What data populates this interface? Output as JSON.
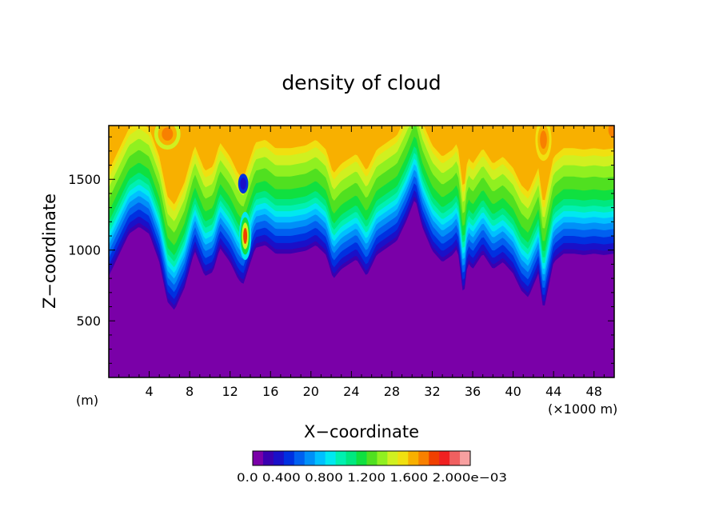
{
  "chart_data": {
    "type": "heatmap",
    "title": "density of cloud",
    "xlabel": "X−coordinate",
    "ylabel": "Z−coordinate",
    "x_unit": "(×1000 m)",
    "y_unit": "(m)",
    "xlim": [
      0,
      50
    ],
    "ylim": [
      100,
      1880
    ],
    "x_ticks": [
      "4",
      "8",
      "12",
      "16",
      "20",
      "24",
      "28",
      "32",
      "36",
      "40",
      "44",
      "48"
    ],
    "y_ticks": [
      "500",
      "1000",
      "1500"
    ],
    "colorbar_labels": [
      "0.000",
      "0.400",
      "0.800",
      "1.200",
      "1.600",
      "2.000e−03"
    ],
    "colorbar_text": "0.0 0.400 0.800 1.200 1.600 2.000e−03",
    "colorbar_colors": [
      "#7a00a8",
      "#3a00b0",
      "#1a10c8",
      "#0030e0",
      "#0060f0",
      "#0090f8",
      "#00c0ff",
      "#00e8f0",
      "#00f0b0",
      "#00e880",
      "#10e040",
      "#50e020",
      "#90f020",
      "#d0f020",
      "#f0e010",
      "#f8b000",
      "#f88000",
      "#f04000",
      "#f02020",
      "#f06060",
      "#f8a0a0"
    ],
    "cloud_base_profile": {
      "x": [
        0,
        1,
        2,
        3,
        4,
        5,
        5.8,
        6.5,
        7.5,
        8.5,
        9.5,
        10.3,
        11,
        12,
        12.8,
        13.3,
        13.8,
        14.5,
        15.5,
        16.5,
        18,
        19.5,
        20.5,
        21.5,
        22.2,
        23,
        24.5,
        25.5,
        26.5,
        27.5,
        28.5,
        29.5,
        30.3,
        31,
        32,
        33,
        34,
        34.5,
        35.1,
        35.5,
        36,
        37,
        38,
        39,
        40,
        40.8,
        41.5,
        42.5,
        43,
        44,
        45,
        46,
        47,
        48,
        49,
        50
      ],
      "z": [
        800,
        950,
        1100,
        1150,
        1100,
        900,
        620,
        560,
        720,
        980,
        800,
        830,
        1000,
        900,
        780,
        740,
        850,
        1000,
        1020,
        960,
        960,
        980,
        1020,
        950,
        780,
        850,
        920,
        800,
        950,
        1000,
        1050,
        1200,
        1350,
        1150,
        980,
        900,
        950,
        1000,
        640,
        900,
        850,
        960,
        850,
        900,
        820,
        700,
        650,
        820,
        550,
        900,
        960,
        960,
        950,
        960,
        950,
        960
      ]
    },
    "grid": false,
    "legend": "bottom-center"
  }
}
